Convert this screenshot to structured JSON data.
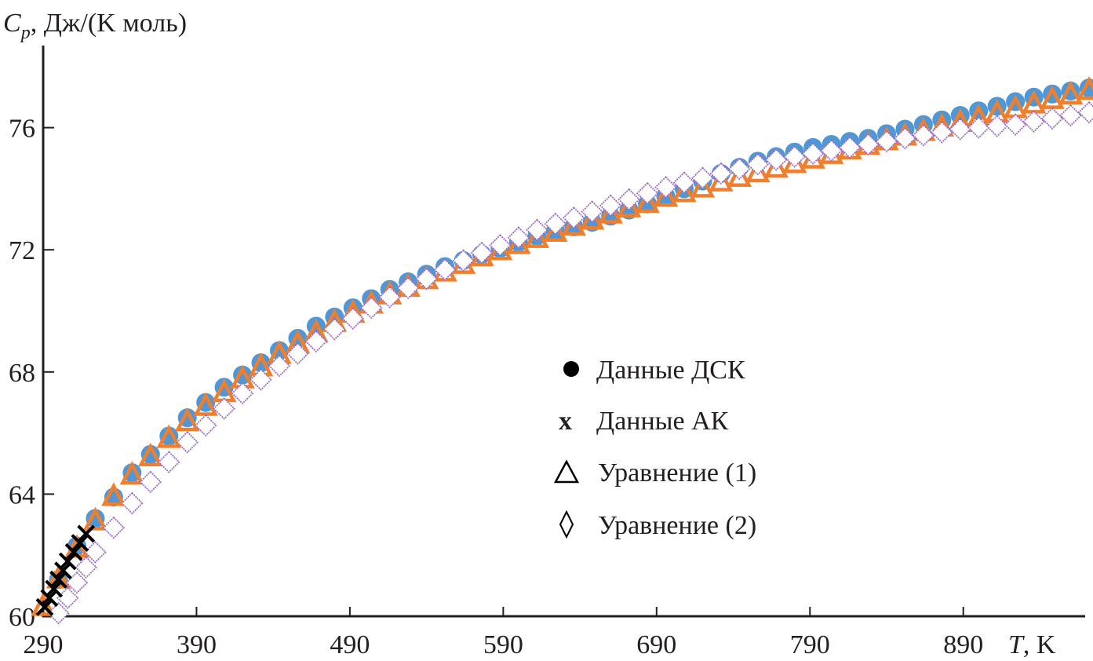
{
  "chart_data": {
    "type": "scatter",
    "title": "",
    "ylabel_symbol": "C",
    "ylabel_subscript": "p",
    "ylabel_units": ", Дж/(K моль)",
    "xlabel_symbol": "T",
    "xlabel_units": ", K",
    "xlim": [
      290,
      1000
    ],
    "ylim": [
      60,
      78.5
    ],
    "xticks": [
      290,
      390,
      490,
      590,
      690,
      790,
      890
    ],
    "xtick_labels": [
      "290",
      "390",
      "490",
      "590",
      "690",
      "790",
      "890"
    ],
    "yticks": [
      60,
      64,
      68,
      72,
      76
    ],
    "ytick_labels": [
      "60",
      "64",
      "68",
      "72",
      "76"
    ],
    "grid": false,
    "legend_position": "center-right",
    "series": [
      {
        "name": "Данные ДСК",
        "marker": "circle",
        "legend_glyph": "●",
        "color": "#4f97d6",
        "x": [
          300,
          312,
          324,
          336,
          348,
          360,
          372,
          384,
          396,
          408,
          420,
          432,
          444,
          456,
          468,
          480,
          492,
          504,
          516,
          528,
          540,
          552,
          564,
          576,
          588,
          600,
          612,
          624,
          636,
          648,
          660,
          672,
          684,
          696,
          708,
          720,
          732,
          744,
          756,
          768,
          780,
          792,
          804,
          816,
          828,
          840,
          852,
          864,
          876,
          888,
          900,
          912,
          924,
          936,
          948,
          960,
          972,
          984
        ],
        "y": [
          61.2,
          62.3,
          63.2,
          63.9,
          64.7,
          65.3,
          65.9,
          66.5,
          67.0,
          67.5,
          67.9,
          68.3,
          68.7,
          69.1,
          69.5,
          69.8,
          70.1,
          70.4,
          70.7,
          70.95,
          71.2,
          71.45,
          71.65,
          71.85,
          72.05,
          72.25,
          72.45,
          72.6,
          72.75,
          72.9,
          73.1,
          73.3,
          73.5,
          73.75,
          74.0,
          74.25,
          74.5,
          74.7,
          74.9,
          75.05,
          75.2,
          75.35,
          75.45,
          75.55,
          75.65,
          75.8,
          75.95,
          76.1,
          76.25,
          76.4,
          76.55,
          76.7,
          76.85,
          77.0,
          77.1,
          77.2,
          77.3,
          77.4
        ]
      },
      {
        "name": "Данные АК",
        "marker": "x",
        "legend_glyph": "x",
        "color": "#000000",
        "x": [
          291,
          294,
          297,
          300,
          303,
          306,
          310,
          314,
          318
        ],
        "y": [
          60.3,
          60.6,
          60.9,
          61.2,
          61.5,
          61.8,
          62.1,
          62.4,
          62.7
        ]
      },
      {
        "name": "Уравнение (1)",
        "marker": "triangle",
        "legend_glyph": "Δ",
        "color": "#f07f2d",
        "x": [
          290,
          300,
          312,
          324,
          336,
          348,
          360,
          372,
          384,
          396,
          408,
          420,
          432,
          444,
          456,
          468,
          480,
          492,
          504,
          516,
          528,
          540,
          552,
          564,
          576,
          588,
          600,
          612,
          624,
          636,
          648,
          660,
          672,
          684,
          696,
          708,
          720,
          732,
          744,
          756,
          768,
          780,
          792,
          804,
          816,
          828,
          840,
          852,
          864,
          876,
          888,
          900,
          912,
          924,
          936,
          948,
          960,
          972,
          984
        ],
        "y": [
          60.3,
          61.2,
          62.2,
          63.1,
          63.9,
          64.6,
          65.2,
          65.8,
          66.35,
          66.85,
          67.3,
          67.75,
          68.15,
          68.55,
          68.9,
          69.25,
          69.6,
          69.9,
          70.2,
          70.5,
          70.75,
          71.0,
          71.25,
          71.5,
          71.75,
          71.95,
          72.15,
          72.35,
          72.55,
          72.75,
          72.95,
          73.15,
          73.35,
          73.5,
          73.7,
          73.85,
          74.0,
          74.2,
          74.35,
          74.5,
          74.65,
          74.8,
          74.95,
          75.1,
          75.25,
          75.4,
          75.55,
          75.7,
          75.85,
          76.0,
          76.15,
          76.3,
          76.45,
          76.6,
          76.75,
          76.9,
          77.05,
          77.2,
          77.35
        ]
      },
      {
        "name": "Уравнение (2)",
        "marker": "diamond",
        "legend_glyph": "◊",
        "color": "#9a6fc4",
        "x": [
          300,
          306,
          312,
          318,
          324,
          336,
          348,
          360,
          372,
          384,
          396,
          408,
          420,
          432,
          444,
          456,
          468,
          480,
          492,
          504,
          516,
          528,
          540,
          552,
          564,
          576,
          588,
          600,
          612,
          624,
          636,
          648,
          660,
          672,
          684,
          696,
          708,
          720,
          732,
          744,
          756,
          768,
          780,
          792,
          804,
          816,
          828,
          840,
          852,
          864,
          876,
          888,
          900,
          912,
          924,
          936,
          948,
          960,
          972,
          984
        ],
        "y": [
          60.1,
          60.6,
          61.1,
          61.6,
          62.1,
          62.9,
          63.7,
          64.4,
          65.05,
          65.7,
          66.25,
          66.8,
          67.3,
          67.75,
          68.2,
          68.6,
          69.0,
          69.4,
          69.75,
          70.1,
          70.45,
          70.75,
          71.05,
          71.35,
          71.65,
          71.9,
          72.15,
          72.4,
          72.65,
          72.85,
          73.05,
          73.25,
          73.45,
          73.65,
          73.85,
          74.05,
          74.2,
          74.35,
          74.5,
          74.65,
          74.8,
          74.95,
          75.05,
          75.15,
          75.25,
          75.35,
          75.45,
          75.55,
          75.65,
          75.75,
          75.85,
          75.95,
          76.0,
          76.05,
          76.1,
          76.2,
          76.3,
          76.4,
          76.5,
          76.6
        ]
      }
    ]
  }
}
